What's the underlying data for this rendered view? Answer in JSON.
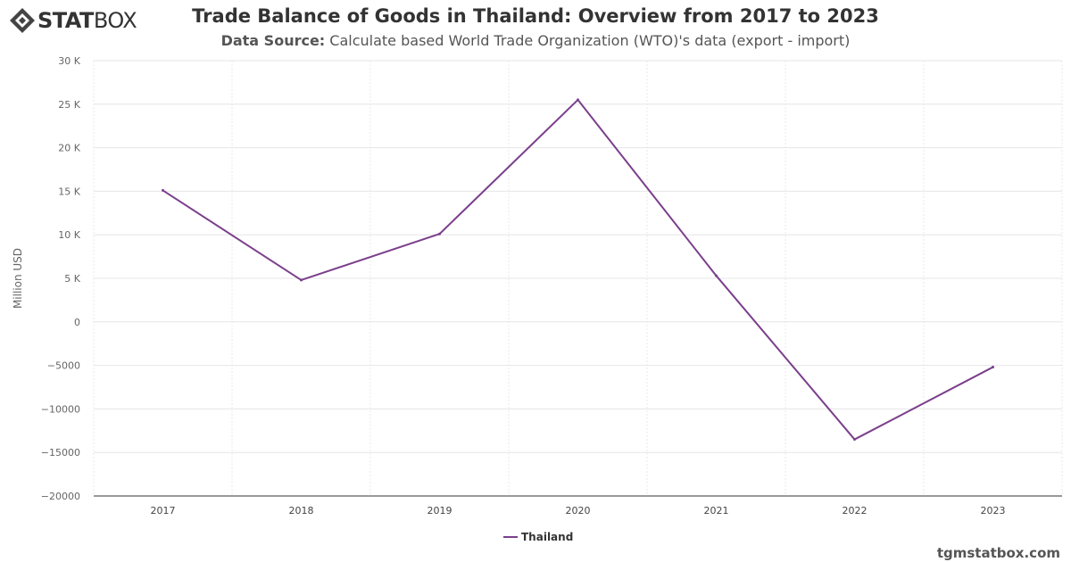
{
  "brand": {
    "logo_prefix": "STAT",
    "logo_suffix": "BOX",
    "credit": "tgmstatbox.com"
  },
  "header": {
    "title": "Trade Balance of Goods in Thailand: Overview from 2017 to 2023",
    "subtitle_label": "Data Source:",
    "subtitle_text": "Calculate based World Trade Organization (WTO)'s data (export - import)"
  },
  "chart_data": {
    "type": "line",
    "title": "Trade Balance of Goods in Thailand: Overview from 2017 to 2023",
    "xlabel": "",
    "ylabel": "Million USD",
    "categories": [
      "2017",
      "2018",
      "2019",
      "2020",
      "2021",
      "2022",
      "2023"
    ],
    "series": [
      {
        "name": "Thailand",
        "color": "#7b3f8c",
        "values": [
          15100,
          4800,
          10100,
          25500,
          5300,
          -13500,
          -5200
        ]
      }
    ],
    "ylim": [
      -20000,
      30000
    ],
    "yticks": [
      30000,
      25000,
      20000,
      15000,
      10000,
      5000,
      0,
      -5000,
      -10000,
      -15000,
      -20000
    ],
    "ytick_labels": [
      "30 K",
      "25 K",
      "20 K",
      "15 K",
      "10 K",
      "5 K",
      "0",
      "−5000",
      "−10000",
      "−15000",
      "−20000"
    ],
    "grid": true,
    "legend": "bottom-center"
  }
}
